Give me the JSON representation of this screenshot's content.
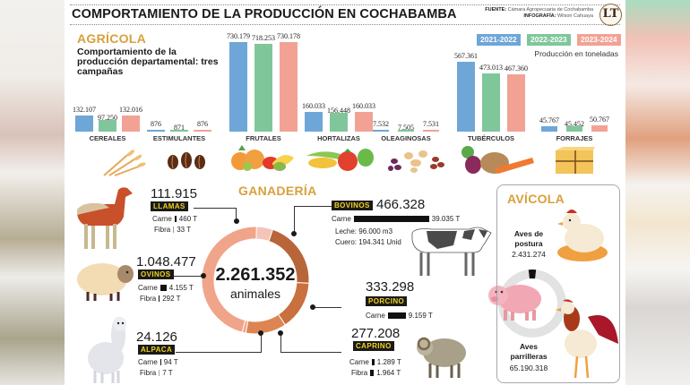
{
  "header": {
    "title": "COMPORTAMIENTO DE LA PRODUCCIÓN EN COCHABAMBA",
    "source_label": "FUENTE:",
    "source_value": "Cámara Agropecuaria de Cochabamba",
    "infographic_label": "INFOGRAFÍA:",
    "infographic_value": "Wilson Cahuaya",
    "logo_text": "LT"
  },
  "agricola": {
    "title": "AGRÍCOLA",
    "subtitle": "Comportamiento de la producción departamental: tres campañas",
    "unit_note": "Producción en toneladas",
    "colors": {
      "2021-2022": "#6fa6d8",
      "2022-2023": "#7fc79a",
      "2023-2024": "#f2a294"
    }
  },
  "chart_data": [
    {
      "type": "bar",
      "title": "Comportamiento de la producción departamental: tres campañas",
      "ylabel": "Producción en toneladas",
      "xlabel": "",
      "categories": [
        "CEREALES",
        "ESTIMULANTES",
        "FRUTALES",
        "HORTALIZAS",
        "OLEAGINOSAS",
        "TUBÉRCULOS",
        "FORRAJES"
      ],
      "series": [
        {
          "name": "2021-2022",
          "values": [
            132107,
            876,
            730179,
            160033,
            7532,
            567361,
            45767
          ],
          "labels": [
            "132.107",
            "876",
            "730.179",
            "160.033",
            "7.532",
            "567.361",
            "45.767"
          ]
        },
        {
          "name": "2022-2023",
          "values": [
            97250,
            871,
            718253,
            156448,
            7505,
            473013,
            45452
          ],
          "labels": [
            "97.250",
            "871",
            "718.253",
            "156.448",
            "7.505",
            "473.013",
            "45.452"
          ]
        },
        {
          "name": "2023-2024",
          "values": [
            132016,
            876,
            730178,
            160033,
            7531,
            467360,
            50767
          ],
          "labels": [
            "132.016",
            "876",
            "730.178",
            "160.033",
            "7.531",
            "467.360",
            "50.767"
          ]
        }
      ],
      "legend": "top-right",
      "grid": false
    },
    {
      "type": "pie",
      "title": "GANADERÍA",
      "center_label": "2.261.352",
      "center_sublabel": "animales",
      "total": 2261352,
      "slices": [
        {
          "name": "LLAMAS",
          "value": 111915
        },
        {
          "name": "BOVINOS",
          "value": 466328
        },
        {
          "name": "PORCINO",
          "value": 333298
        },
        {
          "name": "CAPRINO",
          "value": 277208
        },
        {
          "name": "ALPACA",
          "value": 24126
        },
        {
          "name": "OVINOS",
          "value": 1048477
        }
      ]
    },
    {
      "type": "pie",
      "title": "AVÍCOLA",
      "slices": [
        {
          "name": "Aves de postura",
          "value": 2431274
        },
        {
          "name": "Aves parrilleras",
          "value": 65190318
        }
      ]
    }
  ],
  "ganaderia": {
    "title": "GANADERÍA",
    "colors": {
      "LLAMAS": "#f3c4b8",
      "BOVINOS": "#b8653a",
      "PORCINO": "#c9703f",
      "CAPRINO": "#dd8552",
      "ALPACA": "#efa58e",
      "OVINOS": "#f0a489"
    },
    "animals": {
      "llamas": {
        "name": "LLAMAS",
        "count": "111.915",
        "stats": [
          {
            "label": "Carne",
            "value": "460 T",
            "bar": 0.012
          },
          {
            "label": "Fibra",
            "value": "33 T",
            "bar": 0.001
          }
        ]
      },
      "ovinos": {
        "name": "OVINOS",
        "count": "1.048.477",
        "stats": [
          {
            "label": "Carne",
            "value": "4.155 T",
            "bar": 0.106
          },
          {
            "label": "Fibra",
            "value": "292 T",
            "bar": 0.007
          }
        ]
      },
      "alpaca": {
        "name": "ALPACA",
        "count": "24.126",
        "stats": [
          {
            "label": "Carne",
            "value": "94 T",
            "bar": 0.002
          },
          {
            "label": "Fibra",
            "value": "7 T",
            "bar": 0.0002
          }
        ]
      },
      "bovinos": {
        "name": "BOVINOS",
        "count": "466.328",
        "stats": [
          {
            "label": "Carne",
            "value": "39.035 T",
            "bar": 1.0
          }
        ],
        "extra": [
          "Leche: 96.000 m3",
          "Cuero: 194.341 Unid"
        ]
      },
      "porcino": {
        "name": "PORCINO",
        "count": "333.298",
        "stats": [
          {
            "label": "Carne",
            "value": "9.159 T",
            "bar": 0.235
          }
        ]
      },
      "caprino": {
        "name": "CAPRINO",
        "count": "277.208",
        "stats": [
          {
            "label": "Carne",
            "value": "1.289 T",
            "bar": 0.033
          },
          {
            "label": "Fibra",
            "value": "1.964 T",
            "bar": 0.05
          }
        ]
      }
    },
    "center_total": "2.261.352",
    "center_unit": "animales"
  },
  "avicola": {
    "title": "AVÍCOLA",
    "postura_label": "Aves de postura",
    "postura_value": "2.431.274",
    "parrilleras_label": "Aves parrilleras",
    "parrilleras_value": "65.190.318"
  }
}
